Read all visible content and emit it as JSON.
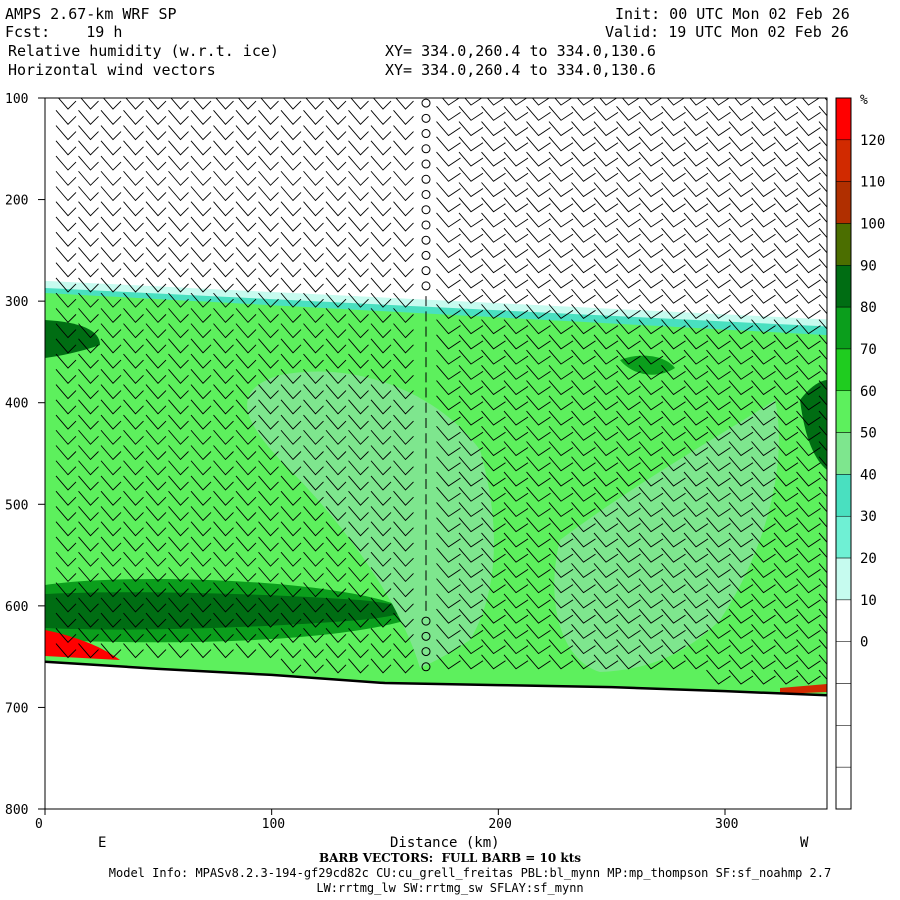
{
  "header": {
    "model": "AMPS 2.67-km WRF SP",
    "fcst": "Fcst:    19 h",
    "field1": "Relative humidity (w.r.t. ice)",
    "field2": "Horizontal wind vectors",
    "xy1": "XY= 334.0,260.4 to 334.0,130.6",
    "xy2": "XY= 334.0,260.4 to 334.0,130.6",
    "init": "Init: 00 UTC Mon 02 Feb 26",
    "valid": "Valid: 19 UTC Mon 02 Feb 26"
  },
  "footer": {
    "barb_note": "BARB VECTORS:  FULL BARB = 10 kts",
    "model_info": "Model Info: MPASv8.2.3-194-gf29cd82c CU:cu_grell_freitas PBL:bl_mynn MP:mp_thompson SF:sf_noahmp 2.7",
    "model_info2": "LW:rrtmg_lw SW:rrtmg_sw SFLAY:sf_mynn"
  },
  "chart_data": {
    "type": "heatmap",
    "title": "Relative humidity (w.r.t. ice)",
    "xlabel": "Distance (km)",
    "ylabel": "",
    "xlim": [
      0,
      345
    ],
    "ylim": [
      800,
      100
    ],
    "xticks": [
      0,
      100,
      200,
      300
    ],
    "yticks": [
      100,
      200,
      300,
      400,
      500,
      600,
      700,
      800
    ],
    "x_end_labels": {
      "left": "E",
      "right": "W"
    },
    "colorbar": {
      "unit": "%",
      "labels": [
        120,
        110,
        100,
        90,
        80,
        70,
        60,
        50,
        40,
        30,
        20,
        10,
        0
      ],
      "colors": [
        "#ff0000",
        "#d12a00",
        "#b02f00",
        "#4b6e00",
        "#006d13",
        "#0b9e1c",
        "#1fcc1f",
        "#5df05d",
        "#7ee68e",
        "#49e0c0",
        "#6ff0d4",
        "#c6fbef",
        "#ffffff",
        "#ffffff",
        "#ffffff",
        "#ffffff",
        "#ffffff"
      ]
    },
    "series": [
      {
        "values": [
          {
            "x": 0,
            "p": 655
          },
          {
            "x": 50,
            "p": 662
          },
          {
            "x": 100,
            "p": 668
          },
          {
            "x": 150,
            "p": 676
          },
          {
            "x": 200,
            "p": 678
          },
          {
            "x": 250,
            "p": 680
          },
          {
            "x": 300,
            "p": 684
          },
          {
            "x": 345,
            "p": 688
          }
        ]
      }
    ]
  }
}
